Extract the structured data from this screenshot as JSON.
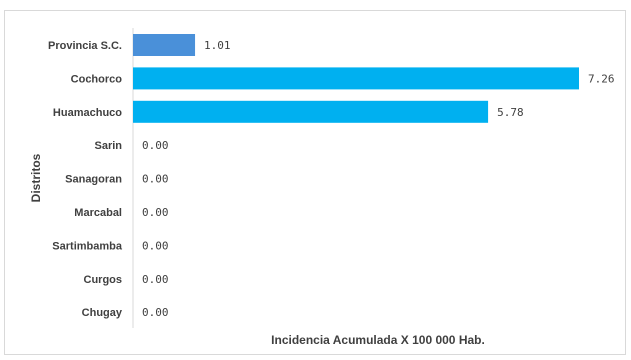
{
  "chart_data": {
    "type": "bar",
    "orientation": "horizontal",
    "categories": [
      "Provincia S.C.",
      "Cochorco",
      "Huamachuco",
      "Sarin",
      "Sanagoran",
      "Marcabal",
      "Sartimbamba",
      "Curgos",
      "Chugay"
    ],
    "values": [
      1.01,
      7.26,
      5.78,
      0.0,
      0.0,
      0.0,
      0.0,
      0.0,
      0.0
    ],
    "value_labels": [
      "1.01",
      "7.26",
      "5.78",
      "0.00",
      "0.00",
      "0.00",
      "0.00",
      "0.00",
      "0.00"
    ],
    "bar_colors": [
      "#4a90d9",
      "#00b0f0",
      "#00b0f0",
      "#00b0f0",
      "#00b0f0",
      "#00b0f0",
      "#00b0f0",
      "#00b0f0",
      "#00b0f0"
    ],
    "xlabel": "Incidencia Acumulada X 100 000 Hab.",
    "ylabel": "Distritos",
    "xlim": [
      0,
      7.26
    ],
    "grid": false,
    "legend": false
  }
}
